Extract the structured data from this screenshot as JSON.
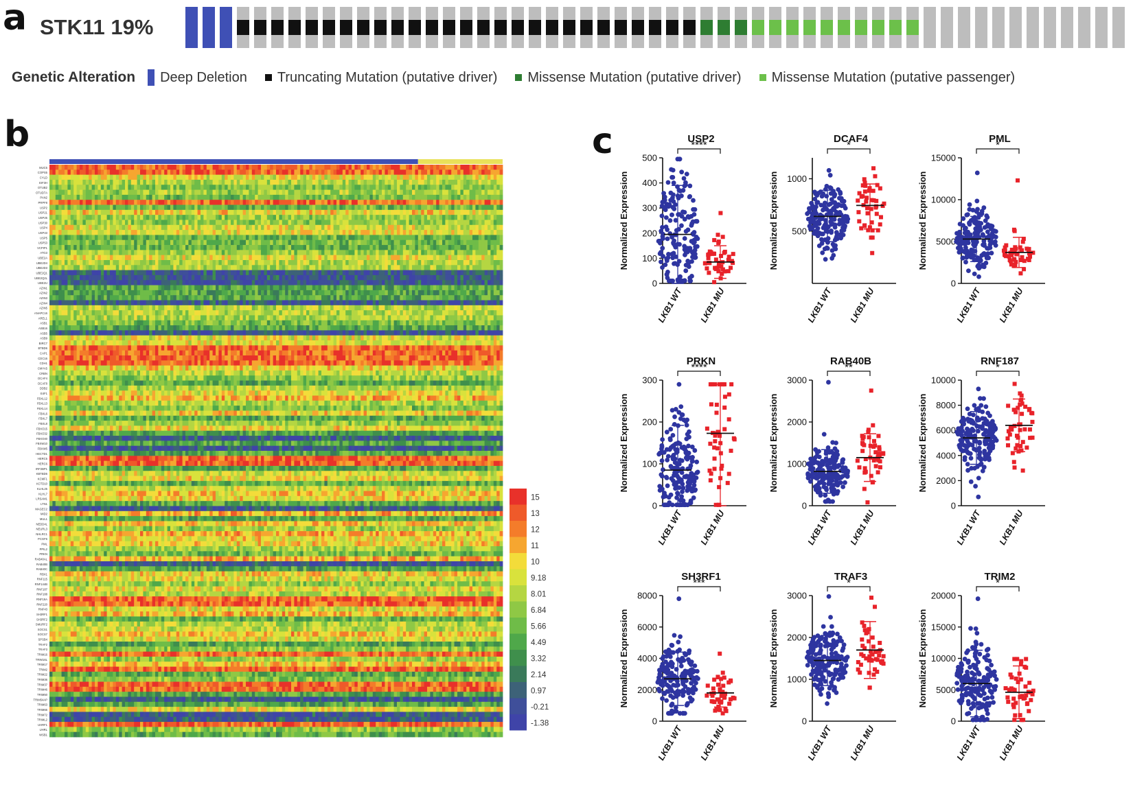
{
  "panel_labels": {
    "a": "a",
    "b": "b",
    "c": "c"
  },
  "panel_a": {
    "gene": "STK11",
    "percent": "19%",
    "legend_title": "Genetic Alteration",
    "legend": [
      {
        "label": "Deep Deletion",
        "color": "#3f50b5"
      },
      {
        "label": "Truncating Mutation (putative driver)",
        "color": "#111111"
      },
      {
        "label": "Missense Mutation (putative driver)",
        "color": "#2e7d32"
      },
      {
        "label": "Missense Mutation (putative passenger)",
        "color": "#6cc04a"
      }
    ],
    "samples": {
      "deep_deletion": 3,
      "truncating": 27,
      "missense_driver": 3,
      "missense_passenger": 10,
      "unaltered": 12
    },
    "unaltered_color": "#bdbdbd"
  },
  "panel_b": {
    "colorbar_ticks": [
      "15",
      "13",
      "12",
      "11",
      "10",
      "9.18",
      "8.01",
      "6.84",
      "5.66",
      "4.49",
      "3.32",
      "2.14",
      "0.97",
      "-0.21",
      "-1.38"
    ],
    "colorbar_colors": [
      "#e8312a",
      "#ef5a2a",
      "#f47c2a",
      "#f6a630",
      "#f3dc3a",
      "#d9e23c",
      "#b5d642",
      "#8fc845",
      "#6fbc48",
      "#4fa84a",
      "#3f8f4c",
      "#3a7a5a",
      "#3d6278",
      "#3f4f9a",
      "#3f44a8"
    ],
    "group_bar": {
      "wt_color": "#3f50b5",
      "mu_color": "#e9e15a"
    },
    "genes": [
      "MUC5",
      "COPS5",
      "CYLD",
      "EIF3H",
      "OTUB2",
      "OTUD7A",
      "PAN2",
      "PRPF8",
      "USP2",
      "USP21",
      "USP25",
      "USP30",
      "USP4",
      "USP43",
      "USP5",
      "USP53",
      "VCPIP1",
      "ATG3",
      "UBE2A",
      "UBE2D4",
      "UBE2D3",
      "UBE2Q1",
      "UBE2Q2L",
      "UBE2U",
      "AZIN1",
      "AZIN2",
      "AZIN3",
      "AZIN4",
      "AZIN5",
      "ANAPC16",
      "AREL1",
      "ASB1",
      "ASB16",
      "ASB5",
      "ASB9",
      "BIRC7",
      "BTBD6",
      "CAP1",
      "CDC16",
      "CDH1",
      "CMYA5",
      "CRBN",
      "DCAF4",
      "DCAF8",
      "DDB2",
      "E4F1",
      "FBXL12",
      "FBXL13",
      "FBXL14",
      "FBXL6",
      "FBXL7",
      "FBXL8",
      "FBXO15",
      "FBXO32",
      "FBXO40",
      "FBXW10",
      "FBXW5",
      "HECTD1",
      "HERC5",
      "HERC6",
      "IRF2BP1",
      "KBTBD6",
      "KCMF1",
      "KCTD10",
      "KLHL25",
      "KLHL7",
      "LRSAM1",
      "LTN1",
      "MAGEC2",
      "MID2",
      "MUL1",
      "NEDD4L",
      "NEURL3",
      "NHLRC1",
      "PCGF6",
      "PML",
      "PPIL2",
      "PRKN",
      "RAB40AL",
      "RAB40B",
      "RAB40C",
      "RBX1",
      "RNF115",
      "RNF144B",
      "RNF187",
      "RNF188",
      "RNF19A",
      "RNF220",
      "RNF43",
      "SH3RF1",
      "SH3RF2",
      "SMURF2",
      "SOCS1",
      "SOCS7",
      "SPSB4",
      "TRAF2",
      "TRAF3",
      "TRIM16",
      "TRIM16L",
      "TRIM17",
      "TRIM2",
      "TRIM22",
      "TRIM36",
      "TRIM37",
      "TRIM46",
      "TRIM50",
      "TRIM54AP",
      "TRIM63",
      "TRIM66",
      "TRIM72",
      "TRIML2",
      "UHRF1",
      "UHRL",
      "WSB1"
    ]
  },
  "panel_c": {
    "ylabel": "Normalized Expression",
    "xlabels": [
      "LKB1 WT",
      "LKB1 MU"
    ],
    "wt_color": "#2e35a0",
    "mu_color": "#e8232a"
  },
  "chart_data": [
    {
      "type": "scatter",
      "title": "USP2",
      "significance": "****",
      "categories": [
        "LKB1 WT",
        "LKB1 MU"
      ],
      "ylim": [
        0,
        500
      ],
      "yticks": [
        0,
        100,
        200,
        300,
        400,
        500
      ],
      "mean": [
        195,
        85
      ],
      "sd_upper": [
        390,
        150
      ],
      "sd_lower": [
        0,
        20
      ],
      "range": [
        [
          10,
          495
        ],
        [
          5,
          280
        ]
      ],
      "n": [
        180,
        45
      ]
    },
    {
      "type": "scatter",
      "title": "DCAF4",
      "significance": "*",
      "categories": [
        "LKB1 WT",
        "LKB1 MU"
      ],
      "ylim": [
        0,
        1200
      ],
      "yticks": [
        500,
        1000
      ],
      "mean": [
        640,
        745
      ],
      "sd_upper": [
        890,
        950
      ],
      "sd_lower": [
        400,
        520
      ],
      "range": [
        [
          230,
          1080
        ],
        [
          290,
          1100
        ]
      ],
      "n": [
        180,
        45
      ]
    },
    {
      "type": "scatter",
      "title": "PML",
      "significance": "*",
      "categories": [
        "LKB1 WT",
        "LKB1 MU"
      ],
      "ylim": [
        0,
        15000
      ],
      "yticks": [
        0,
        5000,
        10000,
        15000
      ],
      "mean": [
        5300,
        3700
      ],
      "sd_upper": [
        8000,
        5500
      ],
      "sd_lower": [
        2600,
        1900
      ],
      "range": [
        [
          800,
          13200
        ],
        [
          1200,
          12300
        ]
      ],
      "n": [
        180,
        45
      ]
    },
    {
      "type": "scatter",
      "title": "PRKN",
      "significance": "****",
      "categories": [
        "LKB1 WT",
        "LKB1 MU"
      ],
      "ylim": [
        0,
        300
      ],
      "yticks": [
        0,
        100,
        200,
        300
      ],
      "mean": [
        85,
        173
      ],
      "sd_upper": [
        192,
        290
      ],
      "sd_lower": [
        0,
        0
      ],
      "range": [
        [
          2,
          290
        ],
        [
          2,
          290
        ]
      ],
      "n": [
        180,
        45
      ]
    },
    {
      "type": "scatter",
      "title": "RAB40B",
      "significance": "**",
      "categories": [
        "LKB1 WT",
        "LKB1 MU"
      ],
      "ylim": [
        0,
        3000
      ],
      "yticks": [
        0,
        1000,
        2000,
        3000
      ],
      "mean": [
        820,
        1150
      ],
      "sd_upper": [
        1340,
        1720
      ],
      "sd_lower": [
        300,
        580
      ],
      "range": [
        [
          100,
          2950
        ],
        [
          80,
          2750
        ]
      ],
      "n": [
        180,
        45
      ]
    },
    {
      "type": "scatter",
      "title": "RNF187",
      "significance": "*",
      "categories": [
        "LKB1 WT",
        "LKB1 MU"
      ],
      "ylim": [
        0,
        10000
      ],
      "yticks": [
        0,
        2000,
        4000,
        6000,
        8000,
        10000
      ],
      "mean": [
        5400,
        6400
      ],
      "sd_upper": [
        7500,
        8500
      ],
      "sd_lower": [
        3300,
        4300
      ],
      "range": [
        [
          700,
          9300
        ],
        [
          2800,
          9700
        ]
      ],
      "n": [
        180,
        45
      ]
    },
    {
      "type": "scatter",
      "title": "SH3RF1",
      "significance": "***",
      "categories": [
        "LKB1 WT",
        "LKB1 MU"
      ],
      "ylim": [
        0,
        8000
      ],
      "yticks": [
        0,
        2000,
        4000,
        6000,
        8000
      ],
      "mean": [
        2700,
        1800
      ],
      "sd_upper": [
        4400,
        2700
      ],
      "sd_lower": [
        1000,
        900
      ],
      "range": [
        [
          500,
          7800
        ],
        [
          500,
          4300
        ]
      ],
      "n": [
        180,
        45
      ]
    },
    {
      "type": "scatter",
      "title": "TRAF3",
      "significance": "*",
      "categories": [
        "LKB1 WT",
        "LKB1 MU"
      ],
      "ylim": [
        0,
        3000
      ],
      "yticks": [
        0,
        1000,
        2000,
        3000
      ],
      "mean": [
        1450,
        1700
      ],
      "sd_upper": [
        2050,
        2380
      ],
      "sd_lower": [
        850,
        1020
      ],
      "range": [
        [
          420,
          2980
        ],
        [
          800,
          2950
        ]
      ],
      "n": [
        180,
        45
      ]
    },
    {
      "type": "scatter",
      "title": "TRIM2",
      "significance": "*",
      "categories": [
        "LKB1 WT",
        "LKB1 MU"
      ],
      "ylim": [
        0,
        20000
      ],
      "yticks": [
        0,
        5000,
        10000,
        15000,
        20000
      ],
      "mean": [
        6000,
        4600
      ],
      "sd_upper": [
        11300,
        8800
      ],
      "sd_lower": [
        700,
        400
      ],
      "range": [
        [
          200,
          19500
        ],
        [
          200,
          9900
        ]
      ],
      "n": [
        180,
        45
      ]
    }
  ]
}
